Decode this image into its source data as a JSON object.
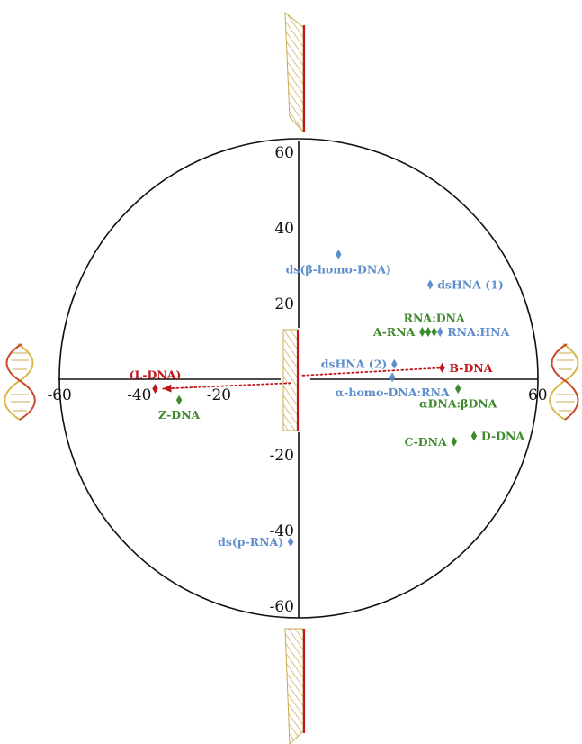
{
  "chart_data": {
    "type": "scatter",
    "title": "",
    "xlabel": "",
    "ylabel": "",
    "xlim": [
      -60,
      60
    ],
    "ylim": [
      -60,
      60
    ],
    "x_ticks": [
      -60,
      -40,
      -20,
      60
    ],
    "y_ticks": [
      60,
      40,
      20,
      -20,
      -40,
      -60
    ],
    "grid": false,
    "colors": {
      "red": "#c0161c",
      "green": "#3f8a2c",
      "blue": "#5f8fcb"
    },
    "points": [
      {
        "label": "ds(β-homo-DNA)",
        "x": 10,
        "y": 33,
        "color": "blue",
        "label_pos": "below"
      },
      {
        "label": "dsHNA (1)",
        "x": 33,
        "y": 25,
        "color": "blue",
        "label_pos": "right"
      },
      {
        "label": "A-RNA",
        "x": 31,
        "y": 12.5,
        "color": "green",
        "label_pos": "left"
      },
      {
        "label": "",
        "x": 32.5,
        "y": 12.5,
        "color": "green",
        "label_pos": "none"
      },
      {
        "label": "RNA:DNA",
        "x": 34,
        "y": 12.5,
        "color": "green",
        "label_pos": "above"
      },
      {
        "label": "RNA:HNA",
        "x": 35.5,
        "y": 12.5,
        "color": "blue",
        "label_pos": "right"
      },
      {
        "label": "dsHNA (2)",
        "x": 24,
        "y": 4,
        "color": "blue",
        "label_pos": "left"
      },
      {
        "label": "B-DNA",
        "x": 36,
        "y": 3,
        "color": "red",
        "label_pos": "right"
      },
      {
        "label": "α-homo-DNA:RNA",
        "x": 23.5,
        "y": 0.5,
        "color": "blue",
        "label_pos": "below"
      },
      {
        "label": "αDNA:βDNA",
        "x": 40,
        "y": -2.5,
        "color": "green",
        "label_pos": "below"
      },
      {
        "label": "D-DNA",
        "x": 44,
        "y": -15,
        "color": "green",
        "label_pos": "right"
      },
      {
        "label": "C-DNA",
        "x": 39,
        "y": -16.5,
        "color": "green",
        "label_pos": "left"
      },
      {
        "label": "(L-DNA)",
        "x": -36,
        "y": -2.5,
        "color": "red",
        "label_pos": "above"
      },
      {
        "label": "Z-DNA",
        "x": -30,
        "y": -5.5,
        "color": "green",
        "label_pos": "below"
      },
      {
        "label": "ds(p-RNA)",
        "x": -2,
        "y": -43,
        "color": "blue",
        "label_pos": "left"
      }
    ],
    "arrows": [
      {
        "from": [
          1,
          1
        ],
        "to": [
          36,
          3
        ],
        "color": "red",
        "style": "dotted"
      },
      {
        "from": [
          -2,
          -1
        ],
        "to": [
          -34,
          -2.5
        ],
        "color": "red",
        "style": "dotted",
        "arrowhead": true
      }
    ]
  }
}
